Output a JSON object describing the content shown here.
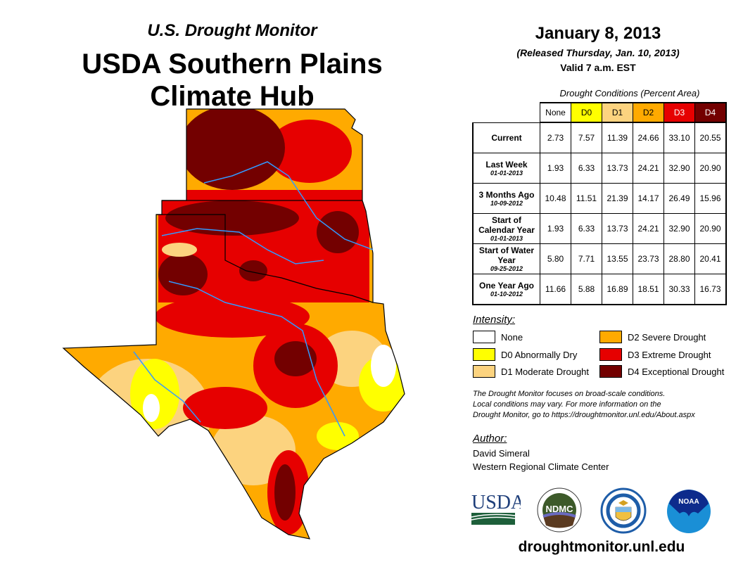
{
  "header": {
    "subtitle": "U.S. Drought Monitor",
    "title_line1": "USDA Southern Plains",
    "title_line2": "Climate Hub"
  },
  "date": {
    "main": "January 8, 2013",
    "released": "(Released Thursday, Jan. 10, 2013)",
    "valid": "Valid 7 a.m. EST"
  },
  "table": {
    "caption": "Drought Conditions (Percent Area)",
    "columns": [
      {
        "label": "None",
        "color": "#ffffff"
      },
      {
        "label": "D0",
        "color": "#ffff00"
      },
      {
        "label": "D1",
        "color": "#fcd37f"
      },
      {
        "label": "D2",
        "color": "#ffaa00"
      },
      {
        "label": "D3",
        "color": "#e60000"
      },
      {
        "label": "D4",
        "color": "#730000"
      }
    ],
    "rows": [
      {
        "label": "Current",
        "date": "",
        "values": [
          "2.73",
          "7.57",
          "11.39",
          "24.66",
          "33.10",
          "20.55"
        ]
      },
      {
        "label": "Last Week",
        "date": "01-01-2013",
        "values": [
          "1.93",
          "6.33",
          "13.73",
          "24.21",
          "32.90",
          "20.90"
        ]
      },
      {
        "label": "3 Months Ago",
        "date": "10-09-2012",
        "values": [
          "10.48",
          "11.51",
          "21.39",
          "14.17",
          "26.49",
          "15.96"
        ]
      },
      {
        "label": "Start of Calendar Year",
        "date": "01-01-2013",
        "values": [
          "1.93",
          "6.33",
          "13.73",
          "24.21",
          "32.90",
          "20.90"
        ]
      },
      {
        "label": "Start of Water Year",
        "date": "09-25-2012",
        "values": [
          "5.80",
          "7.71",
          "13.55",
          "23.73",
          "28.80",
          "20.41"
        ]
      },
      {
        "label": "One Year Ago",
        "date": "01-10-2012",
        "values": [
          "11.66",
          "5.88",
          "16.89",
          "18.51",
          "30.33",
          "16.73"
        ]
      }
    ]
  },
  "legend": {
    "title": "Intensity:",
    "items": [
      {
        "label": "None",
        "color": "#ffffff"
      },
      {
        "label": "D0 Abnormally Dry",
        "color": "#ffff00"
      },
      {
        "label": "D1 Moderate Drought",
        "color": "#fcd37f"
      },
      {
        "label": "D2 Severe Drought",
        "color": "#ffaa00"
      },
      {
        "label": "D3 Extreme Drought",
        "color": "#e60000"
      },
      {
        "label": "D4 Exceptional Drought",
        "color": "#730000"
      }
    ]
  },
  "note": [
    "The Drought Monitor focuses on broad-scale conditions.",
    "Local conditions may vary. For more information on the",
    "Drought Monitor, go to https://droughtmonitor.unl.edu/About.aspx"
  ],
  "author": {
    "label": "Author:",
    "name": "David Simeral",
    "org": "Western Regional Climate Center"
  },
  "logos": {
    "usda": "USDA",
    "ndmc": "NDMC",
    "noaa": "NOAA"
  },
  "footer": {
    "url": "droughtmonitor.unl.edu"
  }
}
